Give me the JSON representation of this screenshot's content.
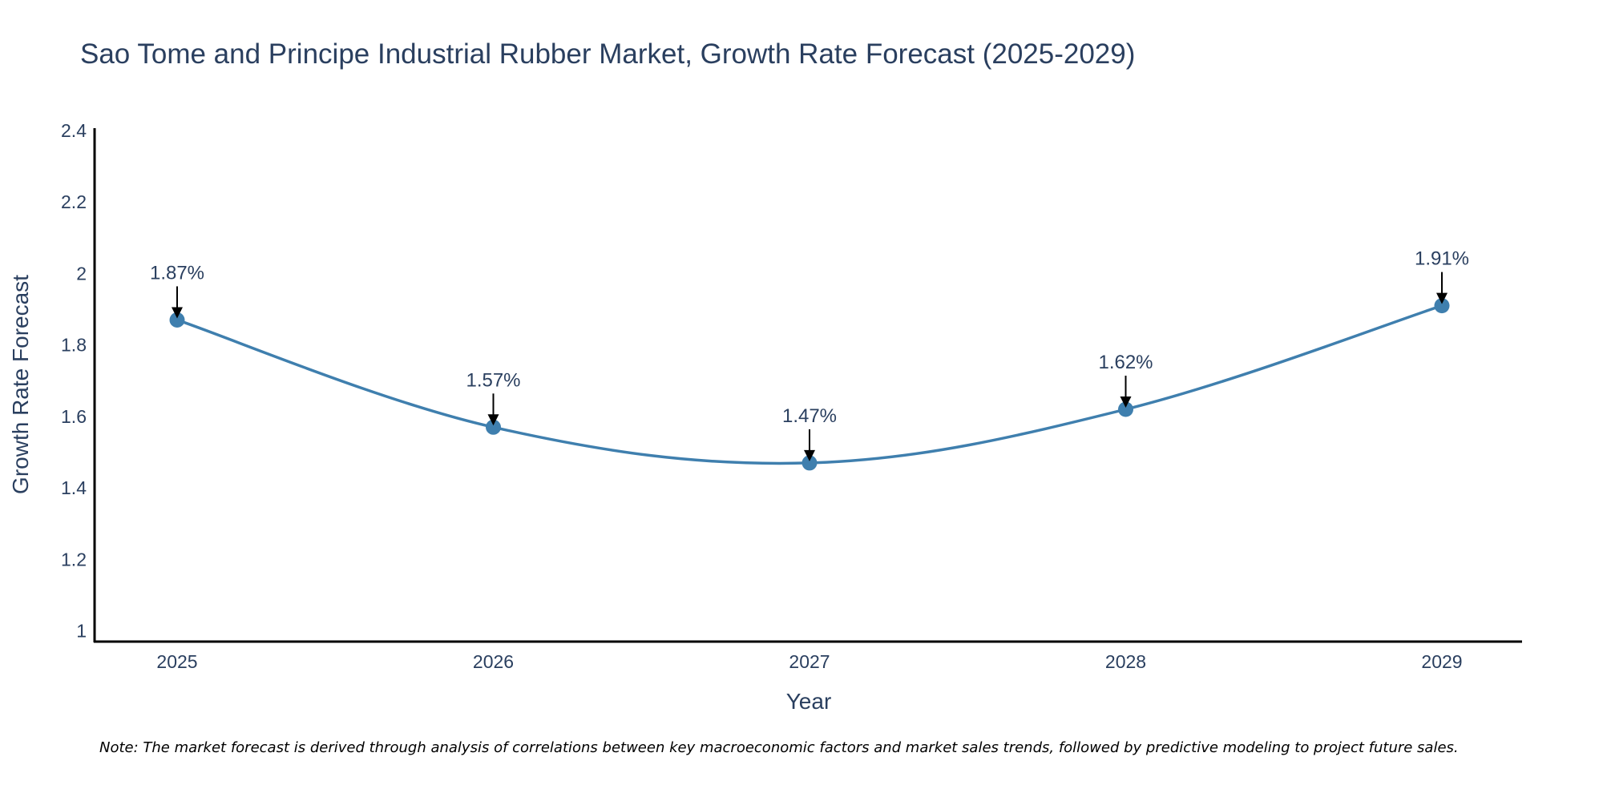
{
  "chart_data": {
    "type": "line",
    "title": "Sao Tome and Principe Industrial Rubber Market, Growth Rate Forecast (2025-2029)",
    "xlabel": "Year",
    "ylabel": "Growth Rate Forecast",
    "categories": [
      "2025",
      "2026",
      "2027",
      "2028",
      "2029"
    ],
    "values": [
      1.87,
      1.57,
      1.47,
      1.62,
      1.91
    ],
    "data_labels": [
      "1.87%",
      "1.57%",
      "1.47%",
      "1.62%",
      "1.91%"
    ],
    "ylim": [
      0.97,
      2.4
    ],
    "yticks": [
      1,
      1.2,
      1.4,
      1.6,
      1.8,
      2,
      2.2,
      2.4
    ],
    "ytick_labels": [
      "1",
      "1.2",
      "1.4",
      "1.6",
      "1.8",
      "2",
      "2.2",
      "2.4"
    ],
    "grid": false,
    "line_shape": "spline",
    "series_color": "#3f7fae",
    "note": "Note: The market forecast is derived through analysis of correlations between key macroeconomic factors and market sales trends, followed by predictive modeling to project future sales."
  }
}
